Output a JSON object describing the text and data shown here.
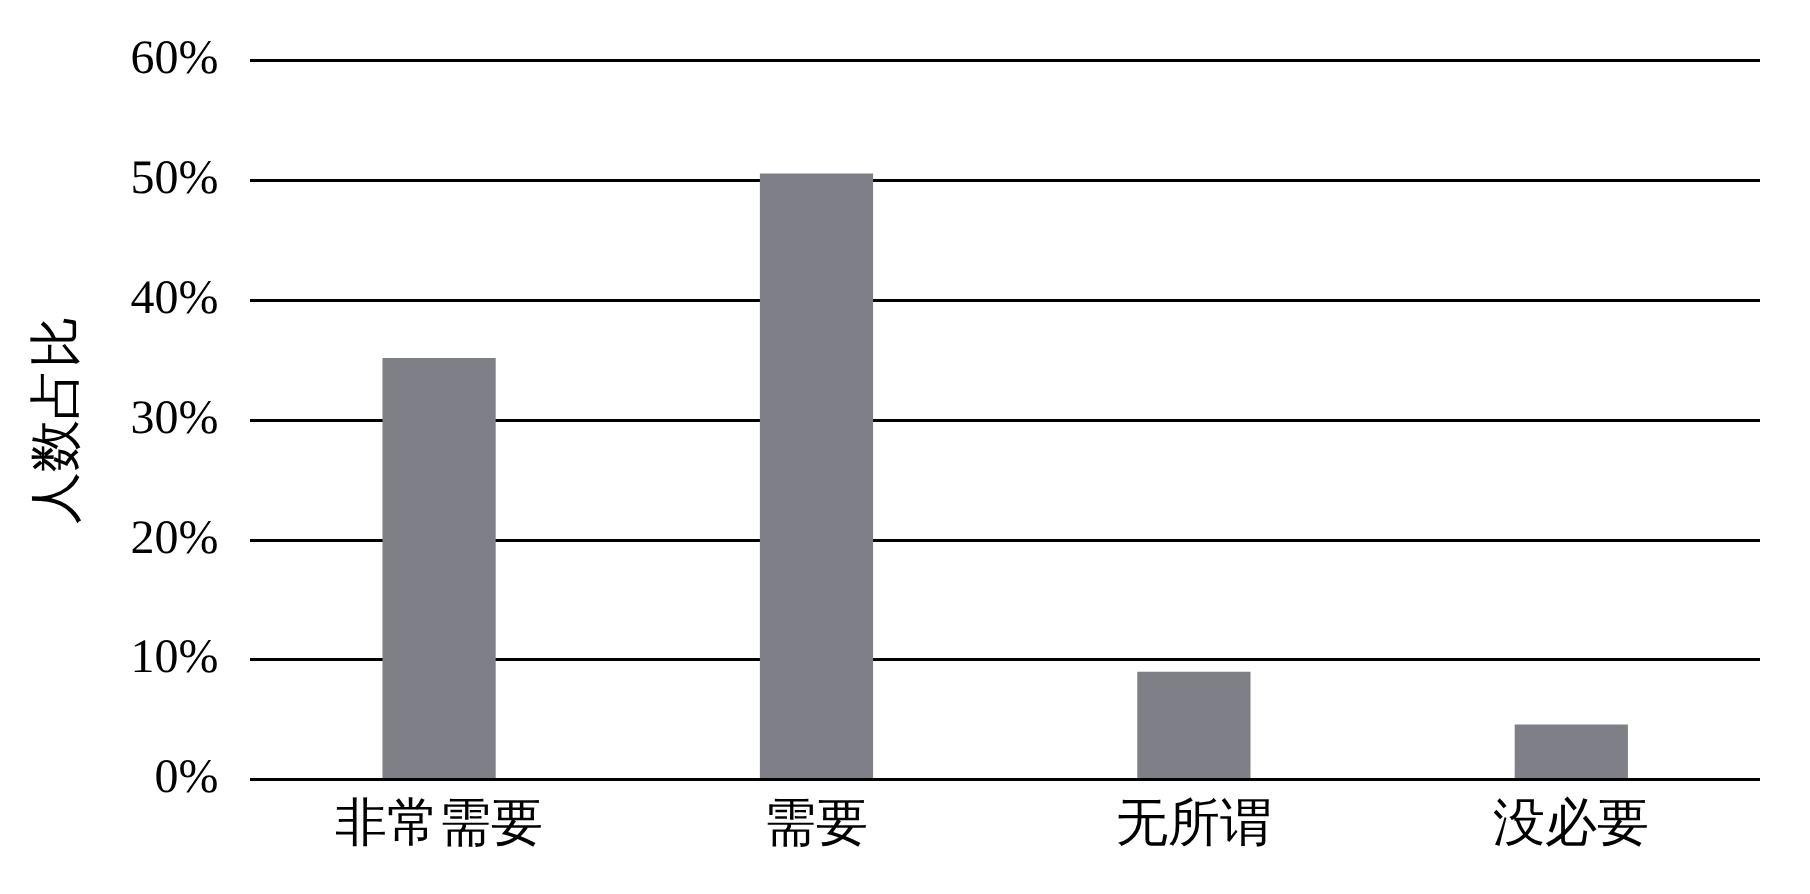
{
  "chart_data": {
    "type": "bar",
    "ylabel": "人数占比",
    "categories": [
      "非常需要",
      "需要",
      "无所谓",
      "没必要"
    ],
    "values": [
      35.2,
      50.6,
      9.0,
      4.6
    ],
    "color": "#7f8087",
    "ylim": [
      0,
      60
    ],
    "yticks": [
      {
        "value": 0,
        "label": "0%"
      },
      {
        "value": 10,
        "label": "10%"
      },
      {
        "value": 20,
        "label": "20%"
      },
      {
        "value": 30,
        "label": "30%"
      },
      {
        "value": 40,
        "label": "40%"
      },
      {
        "value": 50,
        "label": "50%"
      },
      {
        "value": 60,
        "label": "60%"
      }
    ],
    "grid": "y",
    "legend": false
  }
}
